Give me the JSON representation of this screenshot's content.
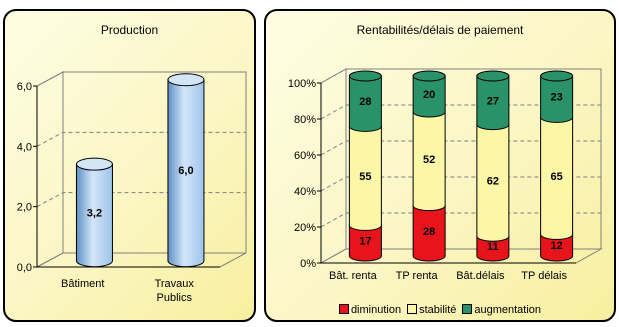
{
  "chart_data": [
    {
      "type": "bar",
      "title": "Production",
      "categories": [
        [
          "Bâtiment"
        ],
        [
          "Travaux",
          "Publics"
        ]
      ],
      "values": [
        3.2,
        6.0
      ],
      "value_labels": [
        "3,2",
        "6,0"
      ],
      "ylim": [
        0,
        6
      ],
      "yticks": [
        "0,0",
        "2,0",
        "4,0",
        "6,0"
      ],
      "grid": true,
      "colors": {
        "bar": "#9fc3eb",
        "bar_dark": "#5f8fc6",
        "bar_light": "#d3e6f8"
      }
    },
    {
      "type": "bar",
      "stacked": true,
      "title": "Rentabilités/délais de paiement",
      "categories": [
        "Bât. renta",
        "TP renta",
        "Bât.délais",
        "TP délais"
      ],
      "series": [
        {
          "name": "diminution",
          "values": [
            17,
            28,
            11,
            12
          ],
          "color": "#e8141c"
        },
        {
          "name": "stabilité",
          "values": [
            55,
            52,
            62,
            65
          ],
          "color": "#fbf7a6"
        },
        {
          "name": "augmentation",
          "values": [
            28,
            20,
            27,
            23
          ],
          "color": "#2a9268"
        }
      ],
      "ylim": [
        0,
        100
      ],
      "yticks": [
        "0%",
        "20%",
        "40%",
        "60%",
        "80%",
        "100%"
      ],
      "grid": true,
      "legend": "bottom"
    }
  ]
}
